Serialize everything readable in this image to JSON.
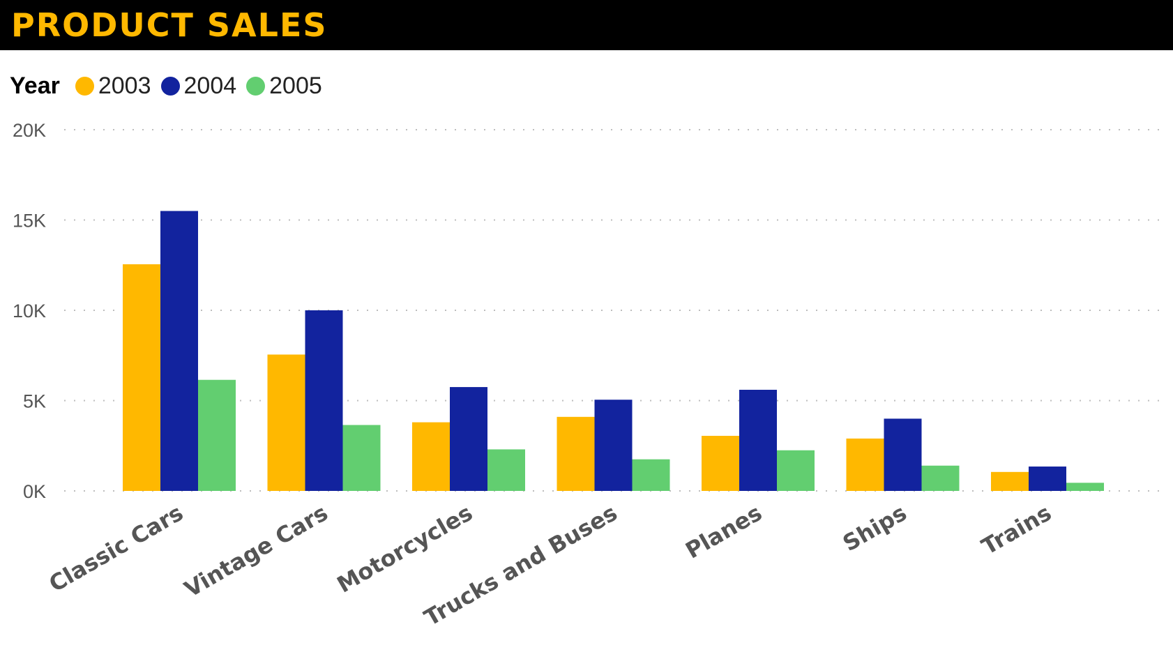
{
  "header": {
    "title": "PRODUCT SALES"
  },
  "legend": {
    "title": "Year",
    "items": [
      {
        "label": "2003",
        "color": "#FFB800"
      },
      {
        "label": "2004",
        "color": "#12239E"
      },
      {
        "label": "2005",
        "color": "#62CE70"
      }
    ]
  },
  "chart_data": {
    "type": "bar",
    "title": "PRODUCT SALES",
    "xlabel": "",
    "ylabel": "",
    "categories": [
      "Classic Cars",
      "Vintage Cars",
      "Motorcycles",
      "Trucks and Buses",
      "Planes",
      "Ships",
      "Trains"
    ],
    "series": [
      {
        "name": "2003",
        "color": "#FFB800",
        "values": [
          12550,
          7550,
          3800,
          4100,
          3050,
          2900,
          1050
        ]
      },
      {
        "name": "2004",
        "color": "#12239E",
        "values": [
          15500,
          10000,
          5750,
          5050,
          5600,
          4000,
          1350
        ]
      },
      {
        "name": "2005",
        "color": "#62CE70",
        "values": [
          6150,
          3650,
          2300,
          1750,
          2250,
          1400,
          450
        ]
      }
    ],
    "ylim": [
      0,
      20000
    ],
    "yticks": [
      {
        "value": 0,
        "label": "0K"
      },
      {
        "value": 5000,
        "label": "5K"
      },
      {
        "value": 10000,
        "label": "10K"
      },
      {
        "value": 15000,
        "label": "15K"
      },
      {
        "value": 20000,
        "label": "20K"
      }
    ],
    "grid": true,
    "legend_position": "top-left"
  }
}
